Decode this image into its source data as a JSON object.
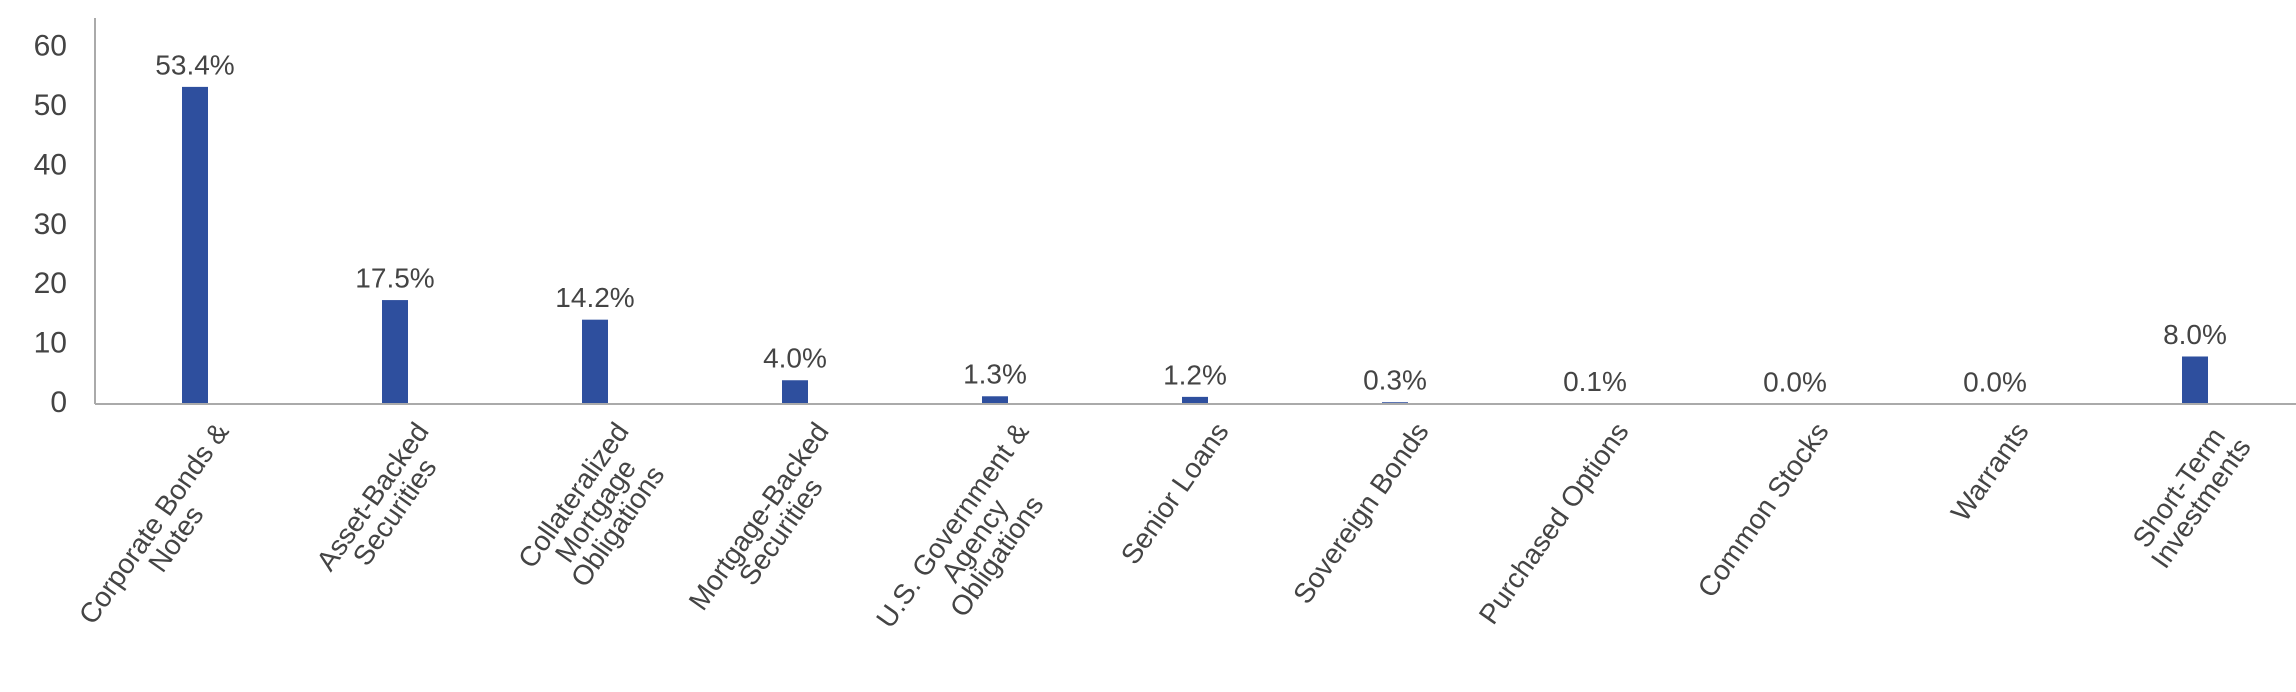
{
  "chart_data": {
    "type": "bar",
    "categories": [
      "Corporate Bonds &\nNotes",
      "Asset-Backed\nSecurities",
      "Collateralized\nMortgage\nObligations",
      "Mortgage-Backed\nSecurities",
      "U.S. Government &\nAgency\nObligations",
      "Senior Loans",
      "Sovereign Bonds",
      "Purchased Options",
      "Common Stocks",
      "Warrants",
      "Short-Term\nInvestments"
    ],
    "values": [
      53.4,
      17.5,
      14.2,
      4.0,
      1.3,
      1.2,
      0.3,
      0.1,
      0.0,
      0.0,
      8.0
    ],
    "value_labels": [
      "53.4%",
      "17.5%",
      "14.2%",
      "4.0%",
      "1.3%",
      "1.2%",
      "0.3%",
      "0.1%",
      "0.0%",
      "0.0%",
      "8.0%"
    ],
    "color": "#2e4f9e",
    "ylim": [
      0,
      65
    ],
    "yticks": [
      0,
      10,
      20,
      30,
      40,
      50,
      60
    ],
    "grid": false
  }
}
